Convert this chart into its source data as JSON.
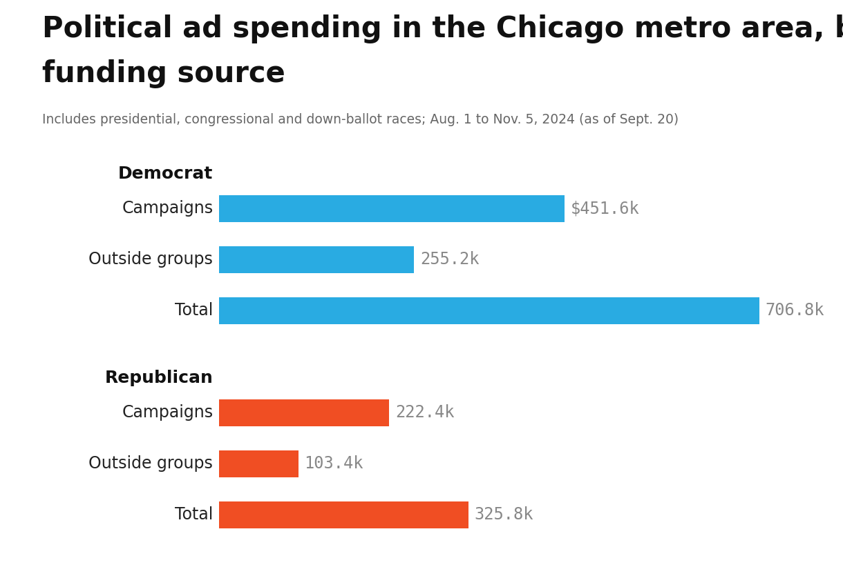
{
  "title_line1": "Political ad spending in the Chicago metro area, by",
  "title_line2": "funding source",
  "subtitle": "Includes presidential, congressional and down-ballot races; Aug. 1 to Nov. 5, 2024 (as of Sept. 20)",
  "title_fontsize": 30,
  "subtitle_fontsize": 13.5,
  "background_color": "#ffffff",
  "groups": [
    {
      "label": "Democrat",
      "color": "#29ABE2",
      "bars": [
        {
          "category": "Campaigns",
          "value": 451.6,
          "label": "$451.6k"
        },
        {
          "category": "Outside groups",
          "value": 255.2,
          "label": "255.2k"
        },
        {
          "category": "Total",
          "value": 706.8,
          "label": "706.8k"
        }
      ]
    },
    {
      "label": "Republican",
      "color": "#F04E23",
      "bars": [
        {
          "category": "Campaigns",
          "value": 222.4,
          "label": "222.4k"
        },
        {
          "category": "Outside groups",
          "value": 103.4,
          "label": "103.4k"
        },
        {
          "category": "Total",
          "value": 325.8,
          "label": "325.8k"
        }
      ]
    }
  ],
  "max_value": 750,
  "bar_height": 0.52,
  "label_color": "#888888",
  "label_fontsize": 17,
  "category_fontsize": 17,
  "group_label_fontsize": 18,
  "cat_label_color": "#222222"
}
